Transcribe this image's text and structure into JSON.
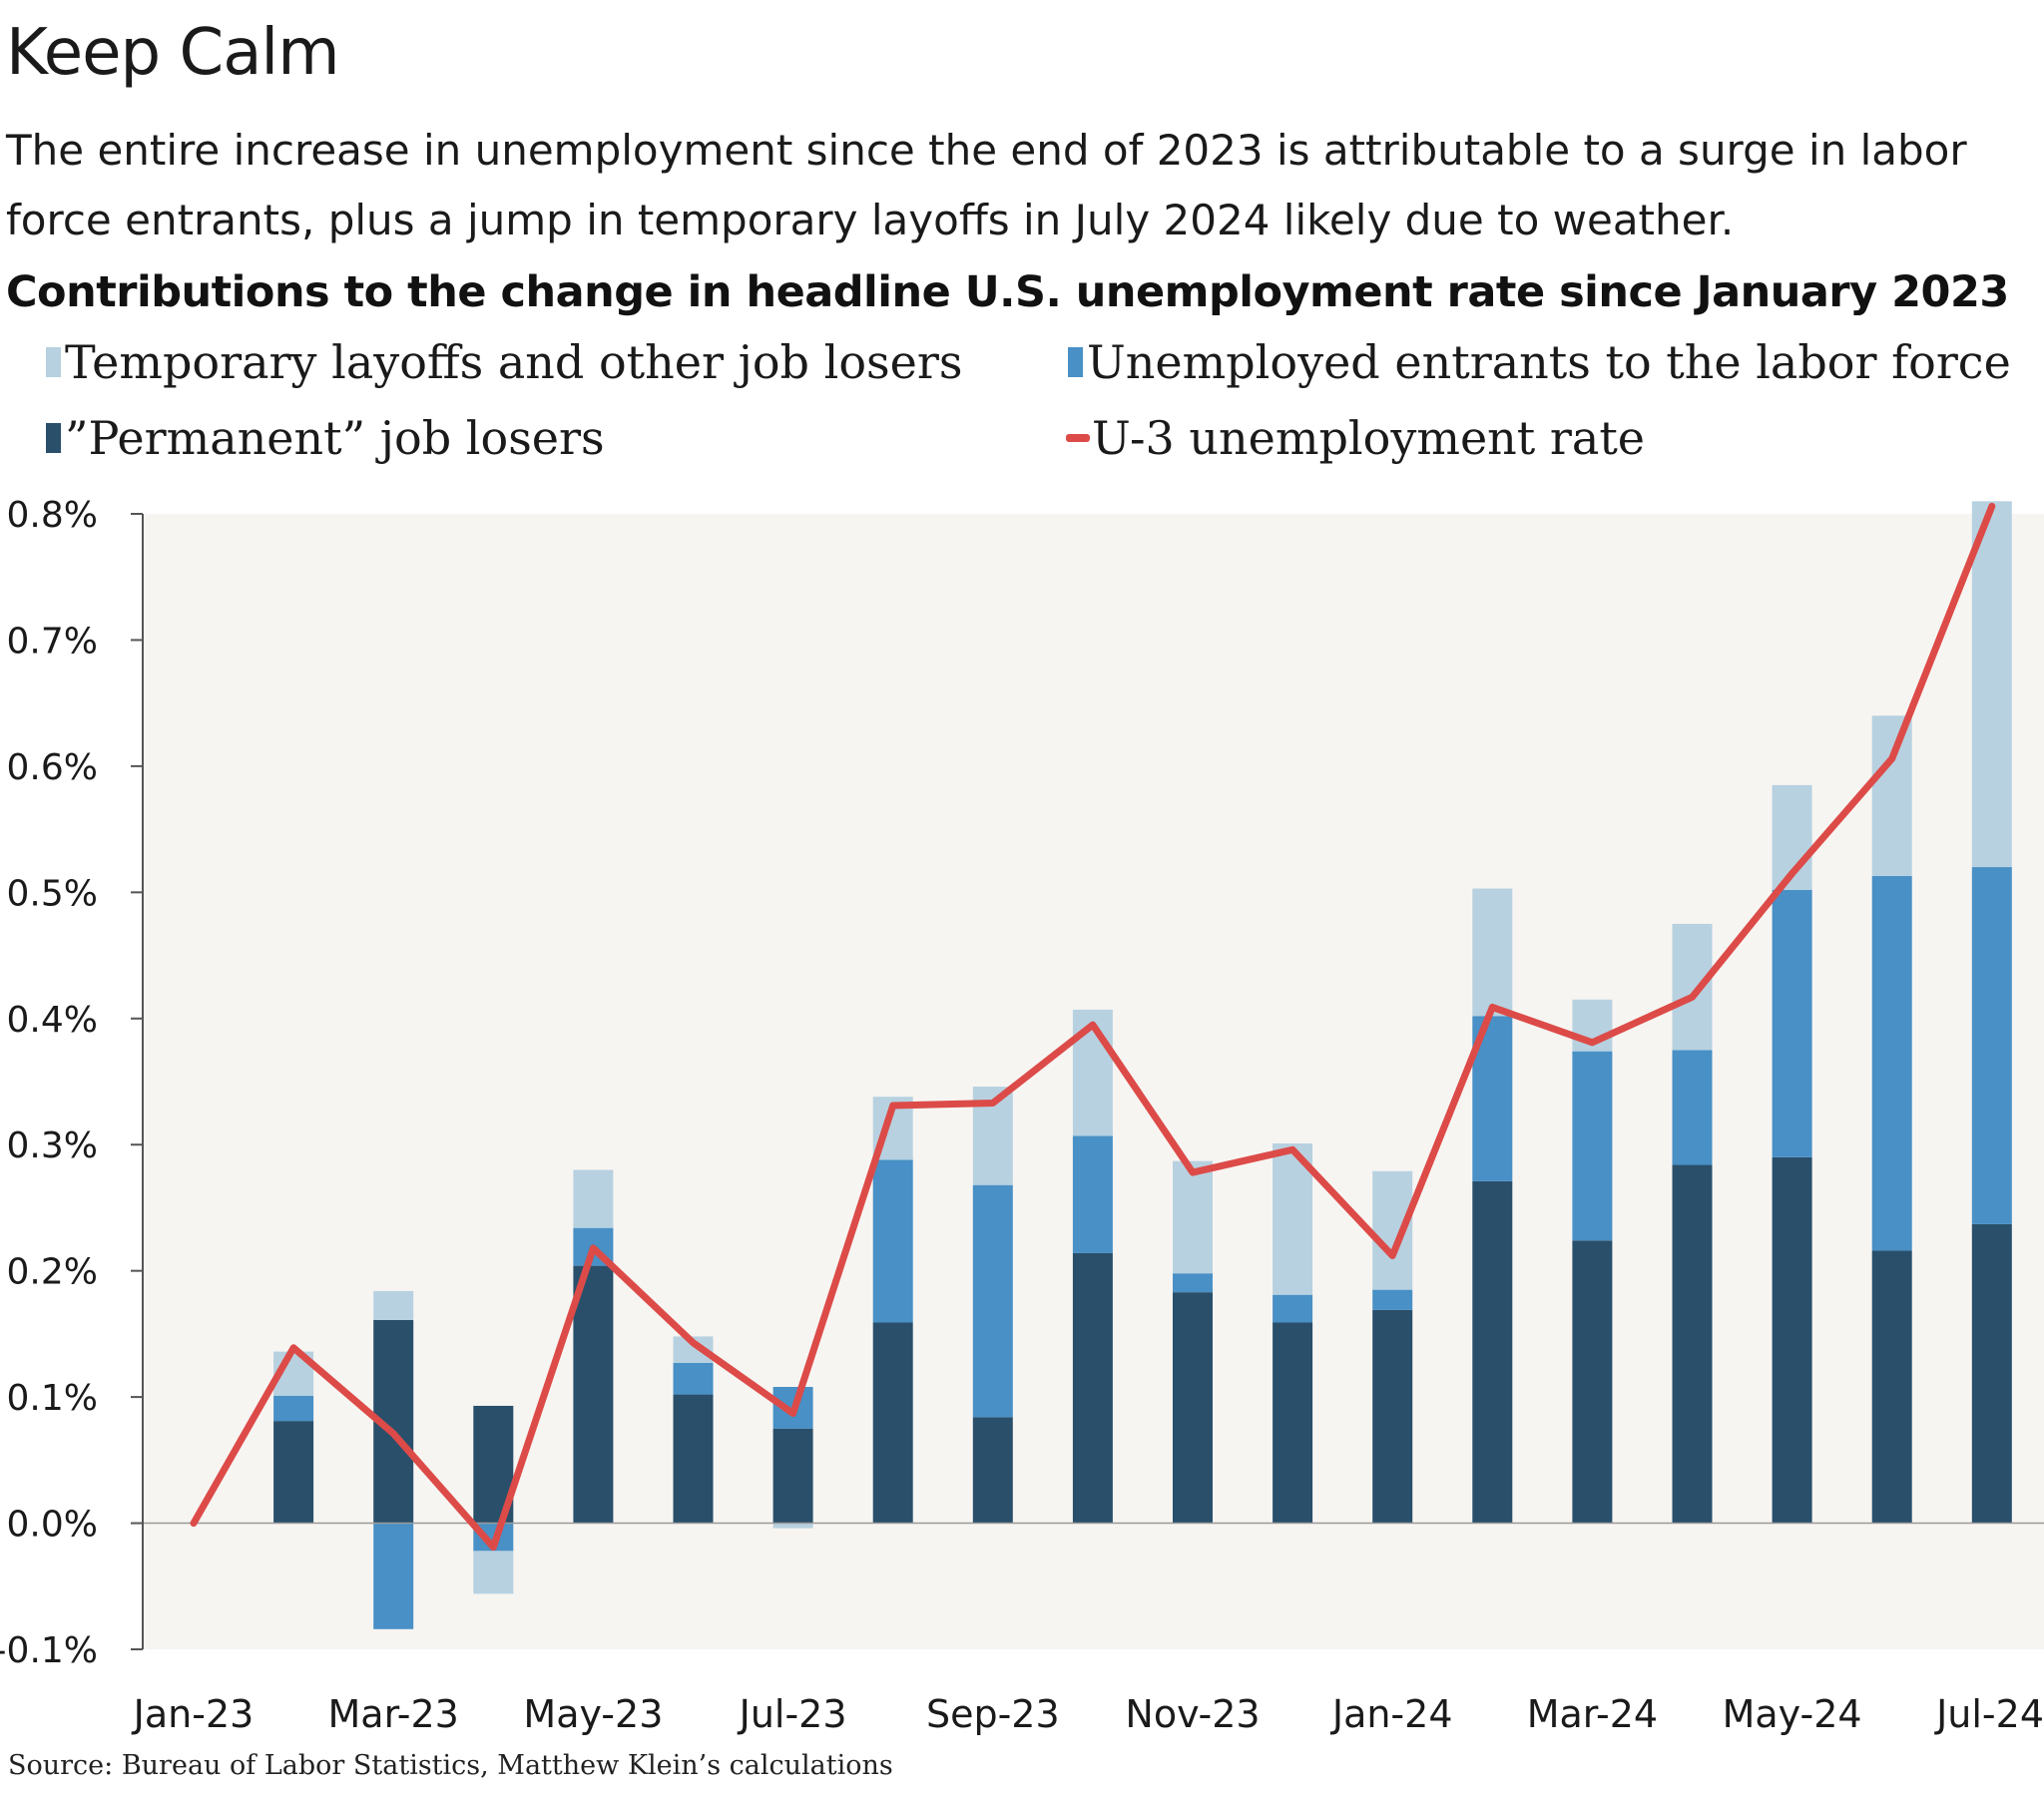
{
  "title": "Keep Calm",
  "subtitle": "The entire increase in unemployment since the end of 2023 is attributable to a surge in labor force entrants, plus a jump in temporary layoffs in July 2024 likely due to weather.",
  "heading": "Contributions to the change in headline U.S. unemployment rate since January 2023",
  "legend": {
    "temporary": "Temporary layoffs and other job losers",
    "entrants": "Unemployed entrants to the labor force",
    "permanent": "”Permanent” job losers",
    "u3": "U-3 unemployment rate"
  },
  "source": "Source: Bureau of Labor Statistics, Matthew Klein’s calculations",
  "colors": {
    "temporary": "#b7d1e0",
    "entrants": "#4890c6",
    "permanent": "#294f6b",
    "u3": "#dc4b48",
    "plot_bg": "#f7f5f2",
    "axis": "#555555"
  },
  "chart_data": {
    "type": "bar",
    "stacked": true,
    "categories": [
      "Jan-23",
      "Feb-23",
      "Mar-23",
      "Apr-23",
      "May-23",
      "Jun-23",
      "Jul-23",
      "Aug-23",
      "Sep-23",
      "Oct-23",
      "Nov-23",
      "Dec-23",
      "Jan-24",
      "Feb-24",
      "Mar-24",
      "Apr-24",
      "May-24",
      "Jun-24",
      "Jul-24"
    ],
    "x_tick_labels": [
      "Jan-23",
      "Mar-23",
      "May-23",
      "Jul-23",
      "Sep-23",
      "Nov-23",
      "Jan-24",
      "Mar-24",
      "May-24",
      "Jul-24"
    ],
    "series": [
      {
        "name": "”Permanent” job losers",
        "key": "permanent",
        "values": [
          0,
          0.081,
          0.161,
          0.093,
          0.204,
          0.102,
          0.075,
          0.159,
          0.084,
          0.214,
          0.183,
          0.159,
          0.169,
          0.271,
          0.224,
          0.284,
          0.29,
          0.216,
          0.237
        ]
      },
      {
        "name": "Unemployed entrants to the labor force",
        "key": "entrants",
        "values": [
          0,
          0.02,
          -0.084,
          -0.022,
          0.03,
          0.025,
          0.033,
          0.129,
          0.184,
          0.093,
          0.015,
          0.022,
          0.016,
          0.131,
          0.15,
          0.091,
          0.212,
          0.297,
          0.283
        ]
      },
      {
        "name": "Temporary layoffs and other job losers",
        "key": "temporary",
        "values": [
          0,
          0.035,
          0.023,
          -0.034,
          0.046,
          0.021,
          -0.004,
          0.05,
          0.078,
          0.1,
          0.089,
          0.12,
          0.094,
          0.101,
          0.041,
          0.1,
          0.083,
          0.127,
          0.29
        ]
      }
    ],
    "line": {
      "name": "U-3 unemployment rate",
      "key": "u3",
      "values": [
        0.0,
        0.139,
        0.071,
        -0.019,
        0.218,
        0.143,
        0.087,
        0.331,
        0.333,
        0.395,
        0.278,
        0.296,
        0.212,
        0.409,
        0.381,
        0.417,
        0.515,
        0.606,
        0.806
      ]
    },
    "ylim": [
      -0.1,
      0.8
    ],
    "y_ticks": [
      -0.1,
      0.0,
      0.1,
      0.2,
      0.3,
      0.4,
      0.5,
      0.6,
      0.7,
      0.8
    ],
    "y_tick_labels": [
      "-0.1%",
      "0.0%",
      "0.1%",
      "0.2%",
      "0.3%",
      "0.4%",
      "0.5%",
      "0.6%",
      "0.7%",
      "0.8%"
    ],
    "grid": false
  }
}
